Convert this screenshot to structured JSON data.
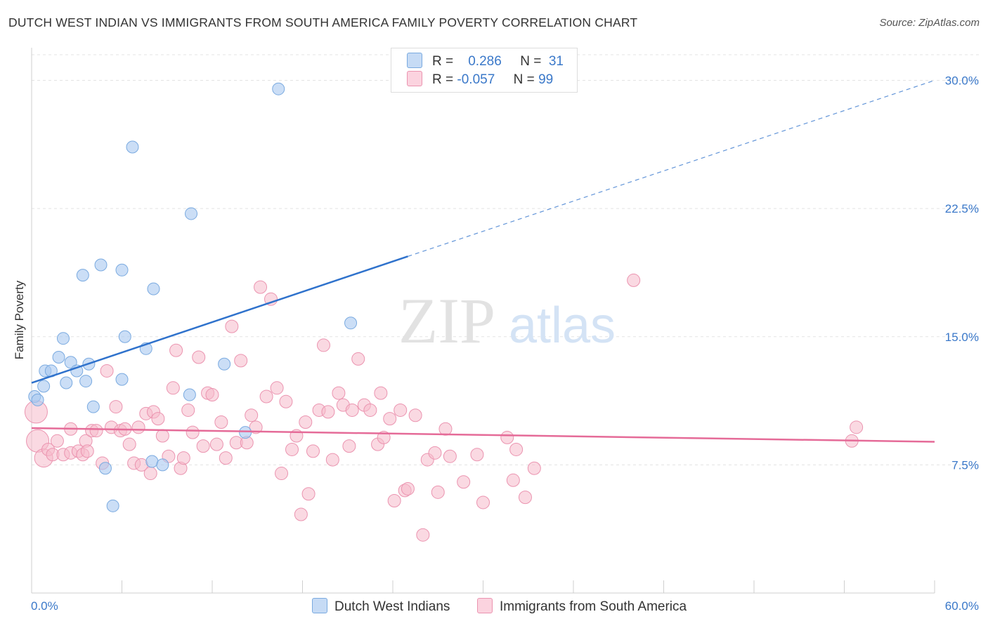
{
  "header": {
    "title": "DUTCH WEST INDIAN VS IMMIGRANTS FROM SOUTH AMERICA FAMILY POVERTY CORRELATION CHART",
    "source": "Source: ZipAtlas.com"
  },
  "watermark": {
    "zip": "ZIP",
    "atlas": "atlas"
  },
  "legend": {
    "r_label": "R =",
    "n_label": "N =",
    "rows": [
      {
        "r": "0.286",
        "n": "31",
        "color": "#a9c8f0"
      },
      {
        "r": "-0.057",
        "n": "99",
        "color": "#f6b9cb"
      }
    ]
  },
  "bottom_legend": {
    "items": [
      {
        "label": "Dutch West Indians",
        "color": "#a9c8f0"
      },
      {
        "label": "Immigrants from South America",
        "color": "#f6b9cb"
      }
    ]
  },
  "chart_data": {
    "type": "scatter",
    "title": "DUTCH WEST INDIAN VS IMMIGRANTS FROM SOUTH AMERICA FAMILY POVERTY CORRELATION CHART",
    "ylabel": "Family Poverty",
    "xlabel": "",
    "xlim": [
      0,
      60
    ],
    "ylim": [
      0,
      31.5
    ],
    "x_tick_labels": [
      "0.0%",
      "60.0%"
    ],
    "y_ticks": [
      7.5,
      15.0,
      22.5,
      30.0
    ],
    "y_tick_labels": [
      "7.5%",
      "15.0%",
      "22.5%",
      "30.0%"
    ],
    "grid": "horizontal dashed",
    "legend_position": "top-center",
    "colors": {
      "blue_fill": "#a9c8f0",
      "blue_stroke": "#7aaae0",
      "blue_line": "#2f72cc",
      "pink_fill": "#f6b9cb",
      "pink_stroke": "#eb94b0",
      "pink_line": "#e56b98",
      "axis_text": "#3a78c9"
    },
    "series": [
      {
        "name": "Dutch West Indians",
        "r": 0.286,
        "n": 31,
        "trend": {
          "x0": 0,
          "y0": 12.3,
          "x1": 25,
          "y1": 19.7,
          "dash_to_x": 60,
          "dash_to_y": 30.0
        },
        "points": [
          [
            16.4,
            29.5
          ],
          [
            6.7,
            26.1
          ],
          [
            10.6,
            22.2
          ],
          [
            4.6,
            19.2
          ],
          [
            6.0,
            18.9
          ],
          [
            3.4,
            18.6
          ],
          [
            8.1,
            17.8
          ],
          [
            21.2,
            15.8
          ],
          [
            2.1,
            14.9
          ],
          [
            6.2,
            15.0
          ],
          [
            7.6,
            14.3
          ],
          [
            1.8,
            13.8
          ],
          [
            0.9,
            13.0
          ],
          [
            1.3,
            13.0
          ],
          [
            2.6,
            13.5
          ],
          [
            3.8,
            13.4
          ],
          [
            3.0,
            13.0
          ],
          [
            12.8,
            13.4
          ],
          [
            6.0,
            12.5
          ],
          [
            2.3,
            12.3
          ],
          [
            3.6,
            12.4
          ],
          [
            0.8,
            12.1
          ],
          [
            0.2,
            11.5
          ],
          [
            0.4,
            11.3
          ],
          [
            10.5,
            11.6
          ],
          [
            4.1,
            10.9
          ],
          [
            14.2,
            9.4
          ],
          [
            4.9,
            7.3
          ],
          [
            8.0,
            7.7
          ],
          [
            8.7,
            7.5
          ],
          [
            5.4,
            5.1
          ]
        ]
      },
      {
        "name": "Immigrants from South America",
        "r": -0.057,
        "n": 99,
        "trend": {
          "x0": 0,
          "y0": 9.65,
          "x1": 60,
          "y1": 8.85
        },
        "points": [
          [
            0.3,
            10.6
          ],
          [
            0.4,
            8.9
          ],
          [
            0.8,
            7.9
          ],
          [
            1.1,
            8.4
          ],
          [
            1.4,
            8.1
          ],
          [
            1.7,
            8.9
          ],
          [
            2.1,
            8.1
          ],
          [
            2.6,
            8.2
          ],
          [
            2.6,
            9.6
          ],
          [
            3.1,
            8.3
          ],
          [
            3.4,
            8.1
          ],
          [
            3.6,
            8.9
          ],
          [
            3.7,
            8.3
          ],
          [
            4.0,
            9.5
          ],
          [
            4.3,
            9.5
          ],
          [
            4.7,
            7.6
          ],
          [
            5.0,
            13.0
          ],
          [
            5.3,
            9.7
          ],
          [
            5.6,
            10.9
          ],
          [
            5.9,
            9.5
          ],
          [
            6.2,
            9.6
          ],
          [
            6.5,
            8.7
          ],
          [
            6.8,
            7.6
          ],
          [
            7.1,
            9.7
          ],
          [
            7.3,
            7.5
          ],
          [
            7.6,
            10.5
          ],
          [
            7.9,
            7.0
          ],
          [
            8.1,
            10.6
          ],
          [
            8.4,
            10.2
          ],
          [
            8.7,
            9.2
          ],
          [
            9.1,
            8.0
          ],
          [
            9.4,
            12.0
          ],
          [
            9.6,
            14.2
          ],
          [
            9.9,
            7.3
          ],
          [
            10.1,
            7.9
          ],
          [
            10.4,
            10.7
          ],
          [
            10.7,
            9.4
          ],
          [
            11.1,
            13.8
          ],
          [
            11.4,
            8.6
          ],
          [
            11.7,
            11.7
          ],
          [
            12.0,
            11.6
          ],
          [
            12.3,
            8.7
          ],
          [
            12.6,
            10.0
          ],
          [
            12.9,
            7.9
          ],
          [
            13.3,
            15.6
          ],
          [
            13.6,
            8.8
          ],
          [
            13.9,
            13.6
          ],
          [
            14.3,
            8.8
          ],
          [
            14.6,
            10.4
          ],
          [
            14.9,
            9.7
          ],
          [
            15.2,
            17.9
          ],
          [
            15.6,
            11.5
          ],
          [
            15.9,
            17.2
          ],
          [
            16.3,
            12.0
          ],
          [
            16.6,
            7.0
          ],
          [
            16.9,
            11.2
          ],
          [
            17.3,
            8.4
          ],
          [
            17.6,
            9.2
          ],
          [
            17.9,
            4.6
          ],
          [
            18.2,
            10.0
          ],
          [
            18.4,
            5.8
          ],
          [
            18.7,
            8.3
          ],
          [
            19.1,
            10.7
          ],
          [
            19.4,
            14.5
          ],
          [
            19.7,
            10.6
          ],
          [
            20.0,
            7.8
          ],
          [
            20.4,
            11.7
          ],
          [
            20.7,
            11.0
          ],
          [
            21.1,
            8.6
          ],
          [
            21.3,
            10.7
          ],
          [
            21.7,
            13.7
          ],
          [
            22.1,
            11.0
          ],
          [
            22.5,
            10.7
          ],
          [
            23.0,
            8.7
          ],
          [
            23.2,
            11.7
          ],
          [
            23.4,
            9.1
          ],
          [
            23.8,
            10.2
          ],
          [
            24.1,
            5.4
          ],
          [
            24.5,
            10.7
          ],
          [
            24.8,
            6.0
          ],
          [
            25.0,
            6.1
          ],
          [
            25.5,
            10.4
          ],
          [
            26.0,
            3.4
          ],
          [
            26.3,
            7.8
          ],
          [
            26.8,
            8.2
          ],
          [
            27.0,
            5.9
          ],
          [
            27.5,
            9.6
          ],
          [
            27.8,
            8.0
          ],
          [
            28.7,
            6.5
          ],
          [
            29.6,
            8.1
          ],
          [
            30.0,
            5.3
          ],
          [
            31.6,
            9.1
          ],
          [
            32.0,
            6.6
          ],
          [
            32.2,
            8.4
          ],
          [
            32.8,
            5.6
          ],
          [
            33.4,
            7.3
          ],
          [
            40.0,
            18.3
          ],
          [
            54.5,
            8.9
          ],
          [
            54.8,
            9.7
          ]
        ]
      }
    ]
  }
}
